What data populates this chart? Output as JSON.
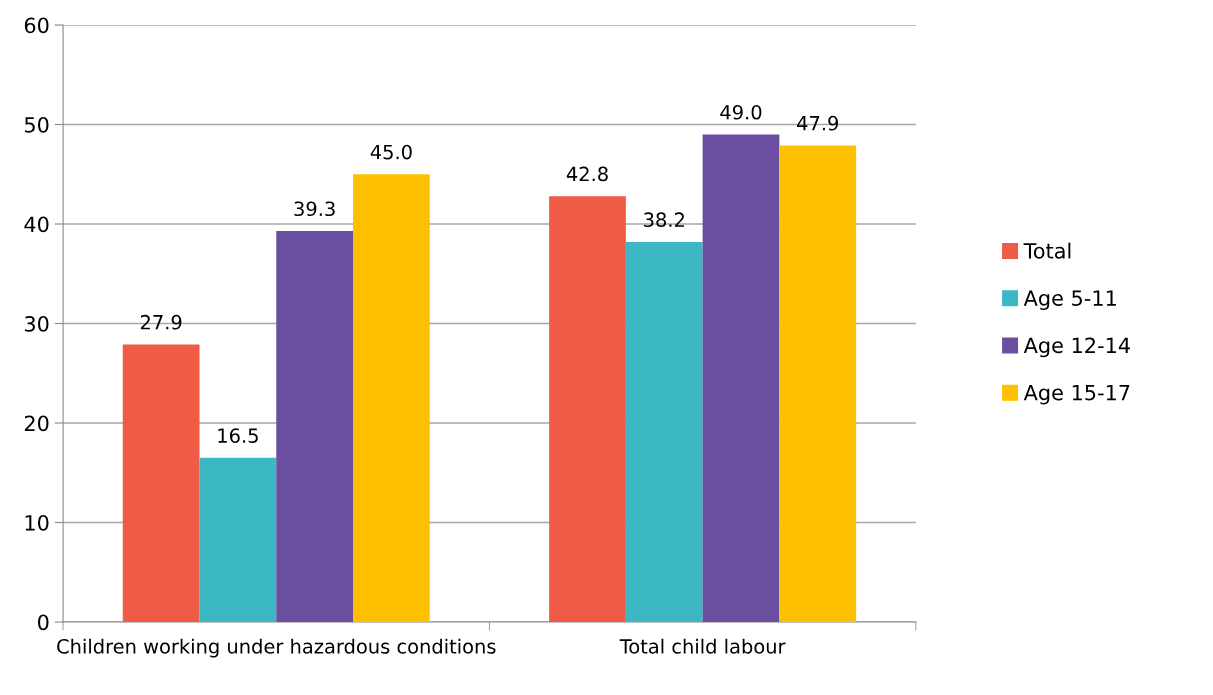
{
  "chart_data": {
    "type": "bar",
    "categories": [
      "Children working under hazardous conditions",
      "Total child labour"
    ],
    "series": [
      {
        "name": "Total",
        "color": "#ef5b45",
        "values": [
          27.9,
          42.8
        ],
        "value_labels": [
          "27.9",
          "42.8"
        ]
      },
      {
        "name": "Age 5-11",
        "color": "#3cb8c5",
        "values": [
          16.5,
          38.2
        ],
        "value_labels": [
          "16.5",
          "38.2"
        ]
      },
      {
        "name": "Age 12-14",
        "color": "#6a4fa0",
        "values": [
          39.3,
          49
        ],
        "value_labels": [
          "39.3",
          "49.0"
        ]
      },
      {
        "name": "Age 15-17",
        "color": "#ffc000",
        "values": [
          45,
          47.9
        ],
        "value_labels": [
          "45.0",
          "47.9"
        ]
      }
    ],
    "ylim": [
      0,
      60
    ],
    "yticks": [
      0,
      10,
      20,
      30,
      40,
      50,
      60
    ],
    "grid": "y",
    "legend": "right"
  }
}
